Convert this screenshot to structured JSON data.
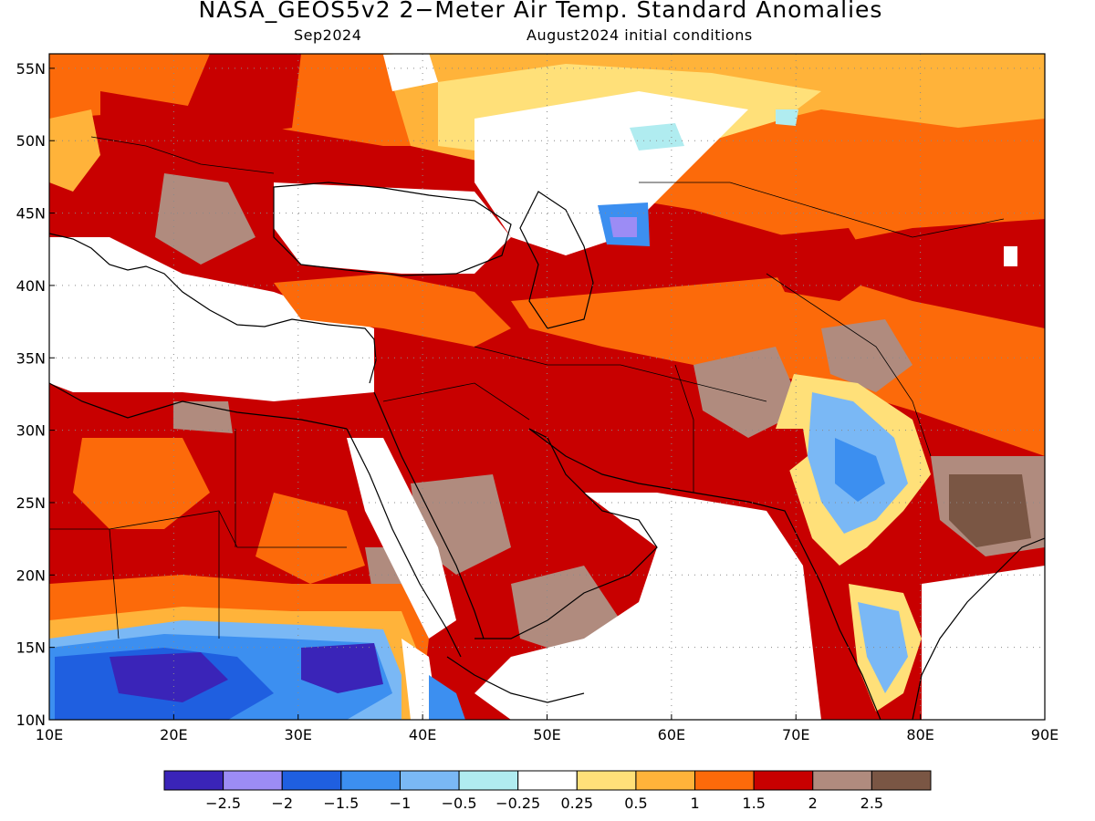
{
  "title": "NASA_GEOS5v2 2−Meter Air Temp. Standard Anomalies",
  "subtitle_left": "Sep2024",
  "subtitle_right": "August2024 initial conditions",
  "map": {
    "lon_range": [
      10,
      90
    ],
    "lat_range": [
      10,
      56
    ],
    "lon_ticks": [
      "10E",
      "20E",
      "30E",
      "40E",
      "50E",
      "60E",
      "70E",
      "80E",
      "90E"
    ],
    "lat_ticks": [
      "10N",
      "15N",
      "20N",
      "25N",
      "30N",
      "35N",
      "40N",
      "45N",
      "50N",
      "55N"
    ],
    "grid": "dotted"
  },
  "colorbar": {
    "colors": [
      "#3a24b8",
      "#9c8cf5",
      "#1f5fe0",
      "#3c8ff0",
      "#7ab8f5",
      "#b0ecf0",
      "#ffffff",
      "#ffe079",
      "#ffb33a",
      "#fc6a0a",
      "#c80000",
      "#b08b7e",
      "#7a5644"
    ],
    "labels": [
      "−2.5",
      "−2",
      "−1.5",
      "−1",
      "−0.5",
      "−0.25",
      "0.25",
      "0.5",
      "1",
      "1.5",
      "2",
      "2.5"
    ]
  }
}
